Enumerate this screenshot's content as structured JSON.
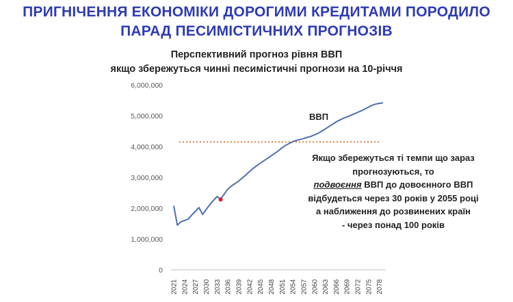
{
  "slide": {
    "title_line1": "ПРИГНІЧЕННЯ ЕКОНОМІКИ ДОРОГИМИ КРЕДИТАМИ ПОРОДИЛО",
    "title_line2": "ПАРАД ПЕСИМІСТИЧНИХ ПРОГНОЗІВ"
  },
  "annotation": {
    "line1": "Якщо збережуться ті темпи що зараз",
    "line2": "прогнозуються, то",
    "emphasis": "подвоєння",
    "line3_rest": " ВВП до довоєнного ВВП",
    "line4": "відбудеться через 30 років у 2055 році",
    "line5": "а наближення до розвинених країн",
    "line6": "- через понад 100 років"
  },
  "chart_data": {
    "type": "line",
    "title_line1": "Перспективний прогноз рівня ВВП",
    "title_line2": "якщо збережуться чинні песимістичні прогнози на 10-річчя",
    "x_tick_labels": [
      "2021",
      "2024",
      "2027",
      "2030",
      "2033",
      "2036",
      "2039",
      "2042",
      "2045",
      "2048",
      "2051",
      "2054",
      "2057",
      "2060",
      "2063",
      "2066",
      "2069",
      "2072",
      "2075",
      "2078"
    ],
    "ylim": [
      0,
      6000000
    ],
    "y_ticks": [
      "0",
      "1,000,000",
      "2,000,000",
      "3,000,000",
      "4,000,000",
      "5,000,000",
      "6,000,000"
    ],
    "y_tick_values": [
      0,
      1000000,
      2000000,
      3000000,
      4000000,
      5000000,
      6000000
    ],
    "grid": false,
    "series": [
      {
        "name": "ВВП",
        "color": "#4a6fb5",
        "points": [
          [
            2021,
            2080000
          ],
          [
            2022,
            1450000
          ],
          [
            2023,
            1560000
          ],
          [
            2024,
            1600000
          ],
          [
            2025,
            1650000
          ],
          [
            2026,
            1780000
          ],
          [
            2027,
            1900000
          ],
          [
            2028,
            2020000
          ],
          [
            2029,
            1800000
          ],
          [
            2030,
            1960000
          ],
          [
            2031,
            2120000
          ],
          [
            2032,
            2250000
          ],
          [
            2033,
            2380000
          ],
          [
            2034,
            2300000
          ],
          [
            2035,
            2460000
          ],
          [
            2036,
            2620000
          ],
          [
            2037,
            2720000
          ],
          [
            2038,
            2800000
          ],
          [
            2039,
            2880000
          ],
          [
            2040,
            2980000
          ],
          [
            2041,
            3080000
          ],
          [
            2042,
            3190000
          ],
          [
            2043,
            3290000
          ],
          [
            2044,
            3380000
          ],
          [
            2045,
            3460000
          ],
          [
            2046,
            3540000
          ],
          [
            2047,
            3620000
          ],
          [
            2048,
            3700000
          ],
          [
            2049,
            3780000
          ],
          [
            2050,
            3860000
          ],
          [
            2051,
            3960000
          ],
          [
            2052,
            4040000
          ],
          [
            2053,
            4100000
          ],
          [
            2054,
            4160000
          ],
          [
            2055,
            4200000
          ],
          [
            2056,
            4230000
          ],
          [
            2057,
            4260000
          ],
          [
            2058,
            4300000
          ],
          [
            2059,
            4330000
          ],
          [
            2060,
            4380000
          ],
          [
            2061,
            4430000
          ],
          [
            2062,
            4500000
          ],
          [
            2063,
            4570000
          ],
          [
            2064,
            4650000
          ],
          [
            2065,
            4720000
          ],
          [
            2066,
            4800000
          ],
          [
            2067,
            4860000
          ],
          [
            2068,
            4920000
          ],
          [
            2069,
            4960000
          ],
          [
            2070,
            5010000
          ],
          [
            2071,
            5060000
          ],
          [
            2072,
            5110000
          ],
          [
            2073,
            5160000
          ],
          [
            2074,
            5220000
          ],
          [
            2075,
            5280000
          ],
          [
            2076,
            5340000
          ],
          [
            2077,
            5380000
          ],
          [
            2078,
            5400000
          ],
          [
            2079,
            5420000
          ]
        ]
      }
    ],
    "reference_line": {
      "value": 4150000,
      "color": "#e07b39",
      "style": "dotted"
    },
    "marker": {
      "x": 2034,
      "y": 2280000,
      "color": "#e8192c"
    }
  }
}
